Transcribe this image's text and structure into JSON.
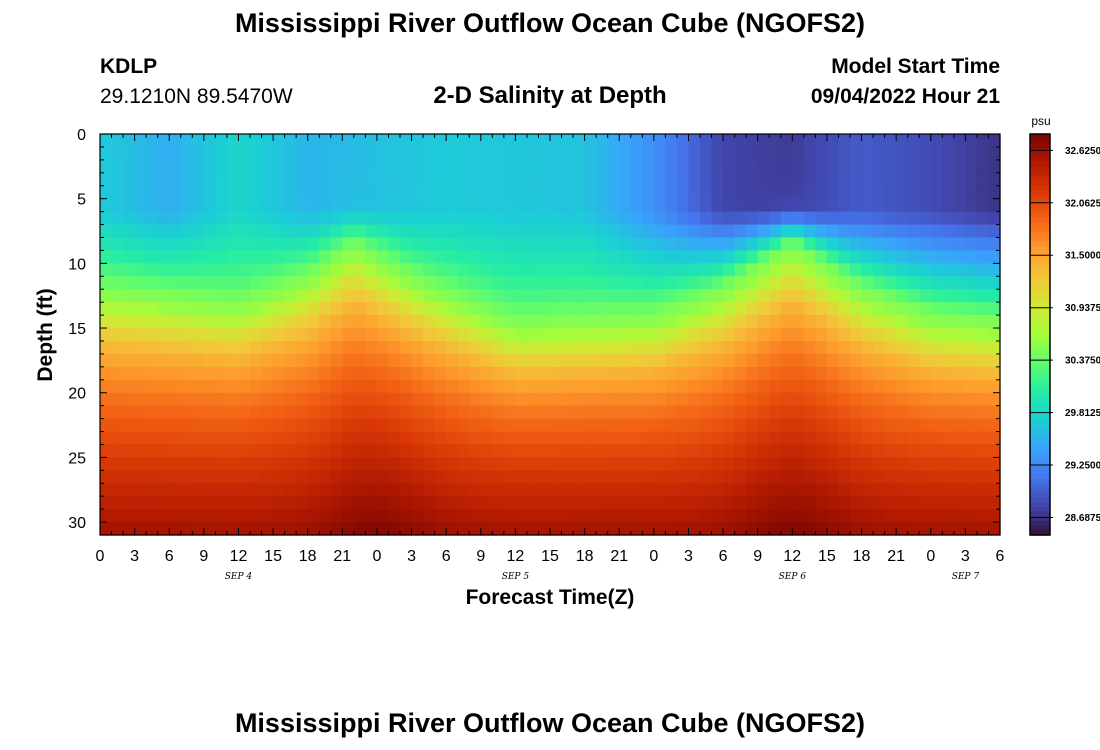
{
  "header": {
    "title": "Mississippi River Outflow Ocean Cube (NGOFS2)",
    "station_id": "KDLP",
    "coordinates": "29.1210N  89.5470W",
    "subtitle": "2-D Salinity at Depth",
    "model_start_label": "Model Start Time",
    "model_start_value": "09/04/2022 Hour 21"
  },
  "footer": {
    "title": "Mississippi River Outflow Ocean Cube (NGOFS2)"
  },
  "chart_data": {
    "type": "heatmap",
    "title": "2-D Salinity at Depth",
    "xlabel": "Forecast Time(Z)",
    "ylabel": "Depth (ft)",
    "x_ticks": [
      "0",
      "3",
      "6",
      "9",
      "12",
      "15",
      "18",
      "21",
      "0",
      "3",
      "6",
      "9",
      "12",
      "15",
      "18",
      "21",
      "0",
      "3",
      "6",
      "9",
      "12",
      "15",
      "18",
      "21",
      "0",
      "3",
      "6"
    ],
    "x_range_hours": [
      0,
      78
    ],
    "day_labels": [
      {
        "label": "SEP 4",
        "hour": 12
      },
      {
        "label": "SEP 5",
        "hour": 36
      },
      {
        "label": "SEP 6",
        "hour": 60
      },
      {
        "label": "SEP 7",
        "hour": 75
      }
    ],
    "y_ticks": [
      "0",
      "5",
      "10",
      "15",
      "20",
      "25",
      "30"
    ],
    "y_range_ft": [
      0,
      31
    ],
    "colorbar": {
      "unit": "psu",
      "range": [
        28.5,
        32.8
      ],
      "tick_labels": [
        "32.6250",
        "32.0625",
        "31.5000",
        "30.9375",
        "30.3750",
        "29.8125",
        "29.2500",
        "28.6875"
      ],
      "tick_values": [
        32.625,
        32.0625,
        31.5,
        30.9375,
        30.375,
        29.8125,
        29.25,
        28.6875
      ]
    },
    "colormap": [
      "#30123b",
      "#4145ab",
      "#4675ed",
      "#39a2fc",
      "#1bcfd4",
      "#24eca6",
      "#61fc6c",
      "#a4fc3b",
      "#d1e834",
      "#f3c63a",
      "#fe9b2d",
      "#f36315",
      "#d93806",
      "#b11901",
      "#7a0402"
    ],
    "surface_layer_profile": [
      {
        "hour": 0,
        "salinity": 29.7
      },
      {
        "hour": 6,
        "salinity": 29.5
      },
      {
        "hour": 12,
        "salinity": 29.8
      },
      {
        "hour": 18,
        "salinity": 29.55
      },
      {
        "hour": 30,
        "salinity": 29.7
      },
      {
        "hour": 42,
        "salinity": 29.65
      },
      {
        "hour": 48,
        "salinity": 29.3
      },
      {
        "hour": 54,
        "salinity": 28.8
      },
      {
        "hour": 60,
        "salinity": 28.75
      },
      {
        "hour": 66,
        "salinity": 28.95
      },
      {
        "hour": 72,
        "salinity": 28.85
      },
      {
        "hour": 78,
        "salinity": 28.7
      }
    ],
    "halocline_depth_profile_ft": [
      {
        "hour": 0,
        "depth": 13
      },
      {
        "hour": 12,
        "depth": 14
      },
      {
        "hour": 18,
        "depth": 12
      },
      {
        "hour": 22,
        "depth": 9.5
      },
      {
        "hour": 28,
        "depth": 12.5
      },
      {
        "hour": 36,
        "depth": 15.5
      },
      {
        "hour": 48,
        "depth": 15
      },
      {
        "hour": 54,
        "depth": 13
      },
      {
        "hour": 60,
        "depth": 9.5
      },
      {
        "hour": 66,
        "depth": 13
      },
      {
        "hour": 72,
        "depth": 15
      },
      {
        "hour": 78,
        "depth": 15.5
      }
    ],
    "bottom_max_hours": [
      24,
      60
    ]
  }
}
